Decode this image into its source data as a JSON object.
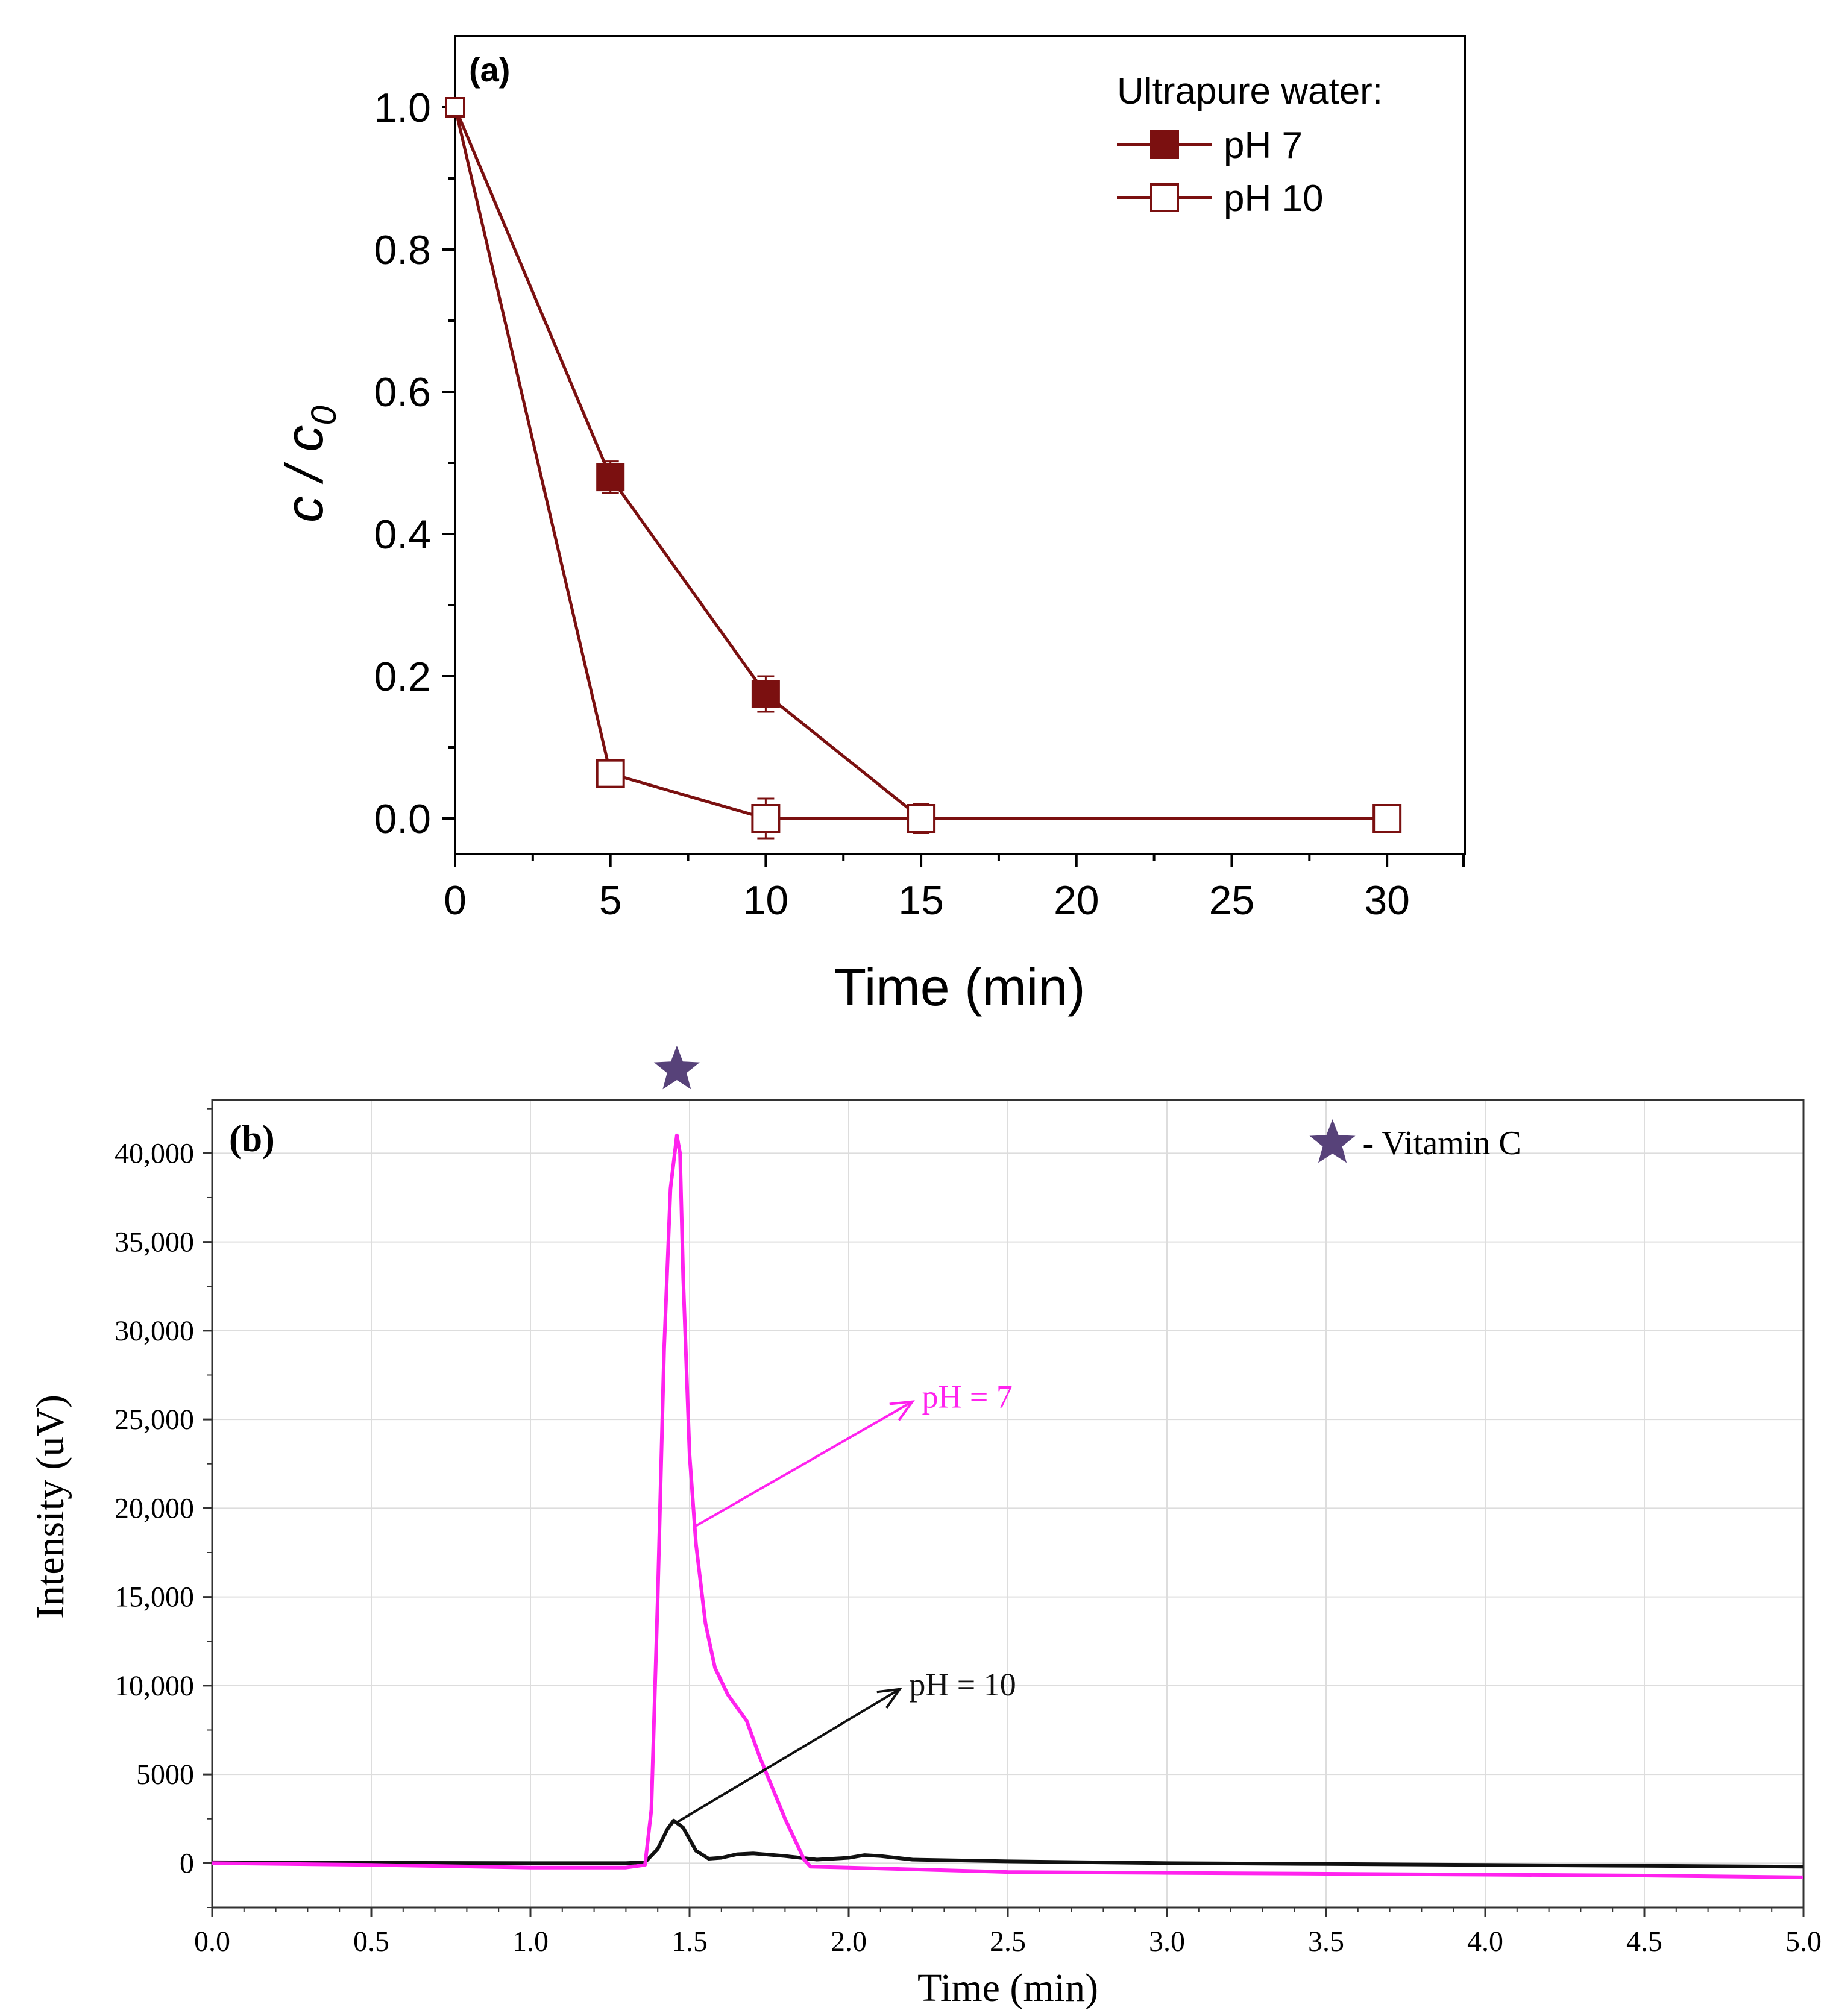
{
  "chart_data": [
    {
      "panel": "(a)",
      "type": "line",
      "xlabel": "Time (min)",
      "ylabel": {
        "main": "c / c",
        "sub": "0"
      },
      "x_ticks": [
        0,
        5,
        10,
        15,
        20,
        25,
        30
      ],
      "y_ticks": [
        "0.0",
        "0.2",
        "0.4",
        "0.6",
        "0.8",
        "1.0"
      ],
      "xlim": [
        0,
        32.5
      ],
      "ylim": [
        -0.05,
        1.1
      ],
      "legend": {
        "title": "Ultrapure water:",
        "position": "top-right"
      },
      "series": [
        {
          "name": "pH 7",
          "marker": "filled-square",
          "color": "#7b1010",
          "x": [
            0,
            5,
            10,
            15,
            30
          ],
          "y": [
            1.0,
            0.48,
            0.175,
            0.0,
            0.0
          ],
          "error": [
            0.0,
            0.022,
            0.025,
            0.015,
            0.012
          ]
        },
        {
          "name": "pH 10",
          "marker": "open-square",
          "color": "#7b1010",
          "x": [
            0,
            5,
            10,
            15,
            30
          ],
          "y": [
            1.0,
            0.063,
            0.0,
            0.0,
            0.0
          ],
          "error": [
            0.0,
            0.018,
            0.028,
            0.02,
            0.015
          ]
        }
      ]
    },
    {
      "panel": "(b)",
      "type": "line",
      "xlabel": "Time (min)",
      "ylabel": "Intensity  (uV)",
      "x_ticks": [
        "0.0",
        "0.5",
        "1.0",
        "1.5",
        "2.0",
        "2.5",
        "3.0",
        "3.5",
        "4.0",
        "4.5",
        "5.0"
      ],
      "y_ticks": [
        "0",
        "5000",
        "10,000",
        "15,000",
        "20,000",
        "25,000",
        "30,000",
        "35,000",
        "40,000"
      ],
      "xlim": [
        0,
        5.0
      ],
      "ylim": [
        -2500,
        43000
      ],
      "legend_text": "- Vitamin C",
      "marker_star_at_time": 1.46,
      "series": [
        {
          "name": "pH = 7",
          "color": "#ff22ee",
          "x": [
            0,
            0.5,
            1.0,
            1.3,
            1.36,
            1.38,
            1.4,
            1.42,
            1.44,
            1.46,
            1.47,
            1.48,
            1.5,
            1.52,
            1.55,
            1.58,
            1.62,
            1.68,
            1.72,
            1.8,
            1.86,
            1.88,
            2.0,
            2.5,
            3.0,
            3.5,
            4.0,
            4.5,
            5.0
          ],
          "y": [
            0,
            -100,
            -250,
            -250,
            -100,
            3000,
            15000,
            29000,
            38000,
            41000,
            40000,
            33000,
            23000,
            18000,
            13500,
            11000,
            9500,
            8000,
            6000,
            2500,
            200,
            -200,
            -250,
            -500,
            -550,
            -600,
            -650,
            -700,
            -800
          ]
        },
        {
          "name": "pH = 10",
          "color": "#111111",
          "x": [
            0,
            0.5,
            1.0,
            1.3,
            1.36,
            1.4,
            1.43,
            1.45,
            1.48,
            1.52,
            1.56,
            1.6,
            1.65,
            1.7,
            1.8,
            1.9,
            2.0,
            2.05,
            2.1,
            2.2,
            2.5,
            3.0,
            3.5,
            4.0,
            4.5,
            5.0
          ],
          "y": [
            50,
            20,
            0,
            0,
            50,
            800,
            1900,
            2400,
            2000,
            700,
            250,
            300,
            500,
            550,
            400,
            200,
            300,
            450,
            400,
            200,
            100,
            0,
            -50,
            -100,
            -150,
            -200
          ]
        }
      ],
      "annotations": [
        {
          "text": "pH = 7",
          "color": "#ff22ee"
        },
        {
          "text": "pH = 10",
          "color": "#111111"
        }
      ]
    }
  ]
}
